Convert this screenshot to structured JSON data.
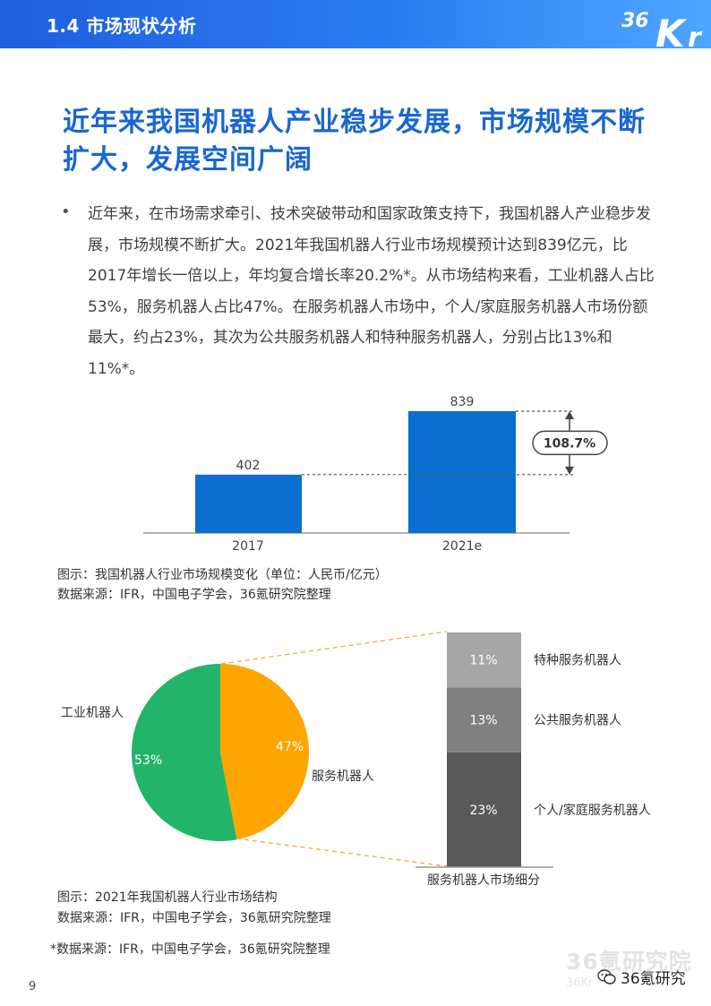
{
  "header": {
    "section_title": "1.4 市场现状分析",
    "logo_text": "36Kr"
  },
  "headline": "近年来我国机器人产业稳步发展，市场规模不断扩大，发展空间广阔",
  "bullet": {
    "marker": "•",
    "text": "近年来，在市场需求牵引、技术突破带动和国家政策支持下，我国机器人产业稳步发展，市场规模不断扩大。2021年我国机器人行业市场规模预计达到839亿元，比2017年增长一倍以上，年均复合增长率20.2%*。从市场结构来看，工业机器人占比53%，服务机器人占比47%。在服务机器人市场中，个人/家庭服务机器人市场份额最大，约占23%，其次为公共服务机器人和特种服务机器人，分别占比13%和11%*。"
  },
  "chart_data": [
    {
      "type": "bar",
      "categories": [
        "2017",
        "2021e"
      ],
      "values": [
        402,
        839
      ],
      "value_labels": [
        "402",
        "839"
      ],
      "annotation": "108.7%",
      "ylim": [
        0,
        839
      ],
      "colors": {
        "bar": "#0a6fd1"
      }
    },
    {
      "type": "pie",
      "labels": [
        "工业机器人",
        "服务机器人"
      ],
      "values": [
        53,
        47
      ],
      "value_labels": [
        "53%",
        "47%"
      ],
      "colors": [
        "#22b56a",
        "#ffa500"
      ],
      "breakdown": {
        "type": "bar",
        "stacked": true,
        "categories": [
          "个人/家庭服务机器人",
          "公共服务机器人",
          "特种服务机器人"
        ],
        "values": [
          23,
          13,
          11
        ],
        "value_labels": [
          "23%",
          "13%",
          "11%"
        ],
        "colors": [
          "#595959",
          "#808080",
          "#a6a6a6"
        ],
        "xlabel": "服务机器人市场细分"
      }
    }
  ],
  "captions": {
    "chart1_title": "图示：我国机器人行业市场规模变化（单位：人民币/亿元）",
    "chart1_source": "数据来源：IFR，中国电子学会，36氪研究院整理",
    "chart2_title": "图示：2021年我国机器人行业市场结构",
    "chart2_source": "数据来源：IFR，中国电子学会，36氪研究院整理"
  },
  "footnote": "*数据来源：IFR，中国电子学会，36氪研究院整理",
  "page_number": "9",
  "watermark": {
    "main": "36氪研究院",
    "sub": "36Kr"
  },
  "wechat": {
    "label": "36氪研究",
    "icon": "wechat-icon"
  },
  "colors": {
    "accent": "#1967d2",
    "header_bg": "#2b7cf0"
  }
}
